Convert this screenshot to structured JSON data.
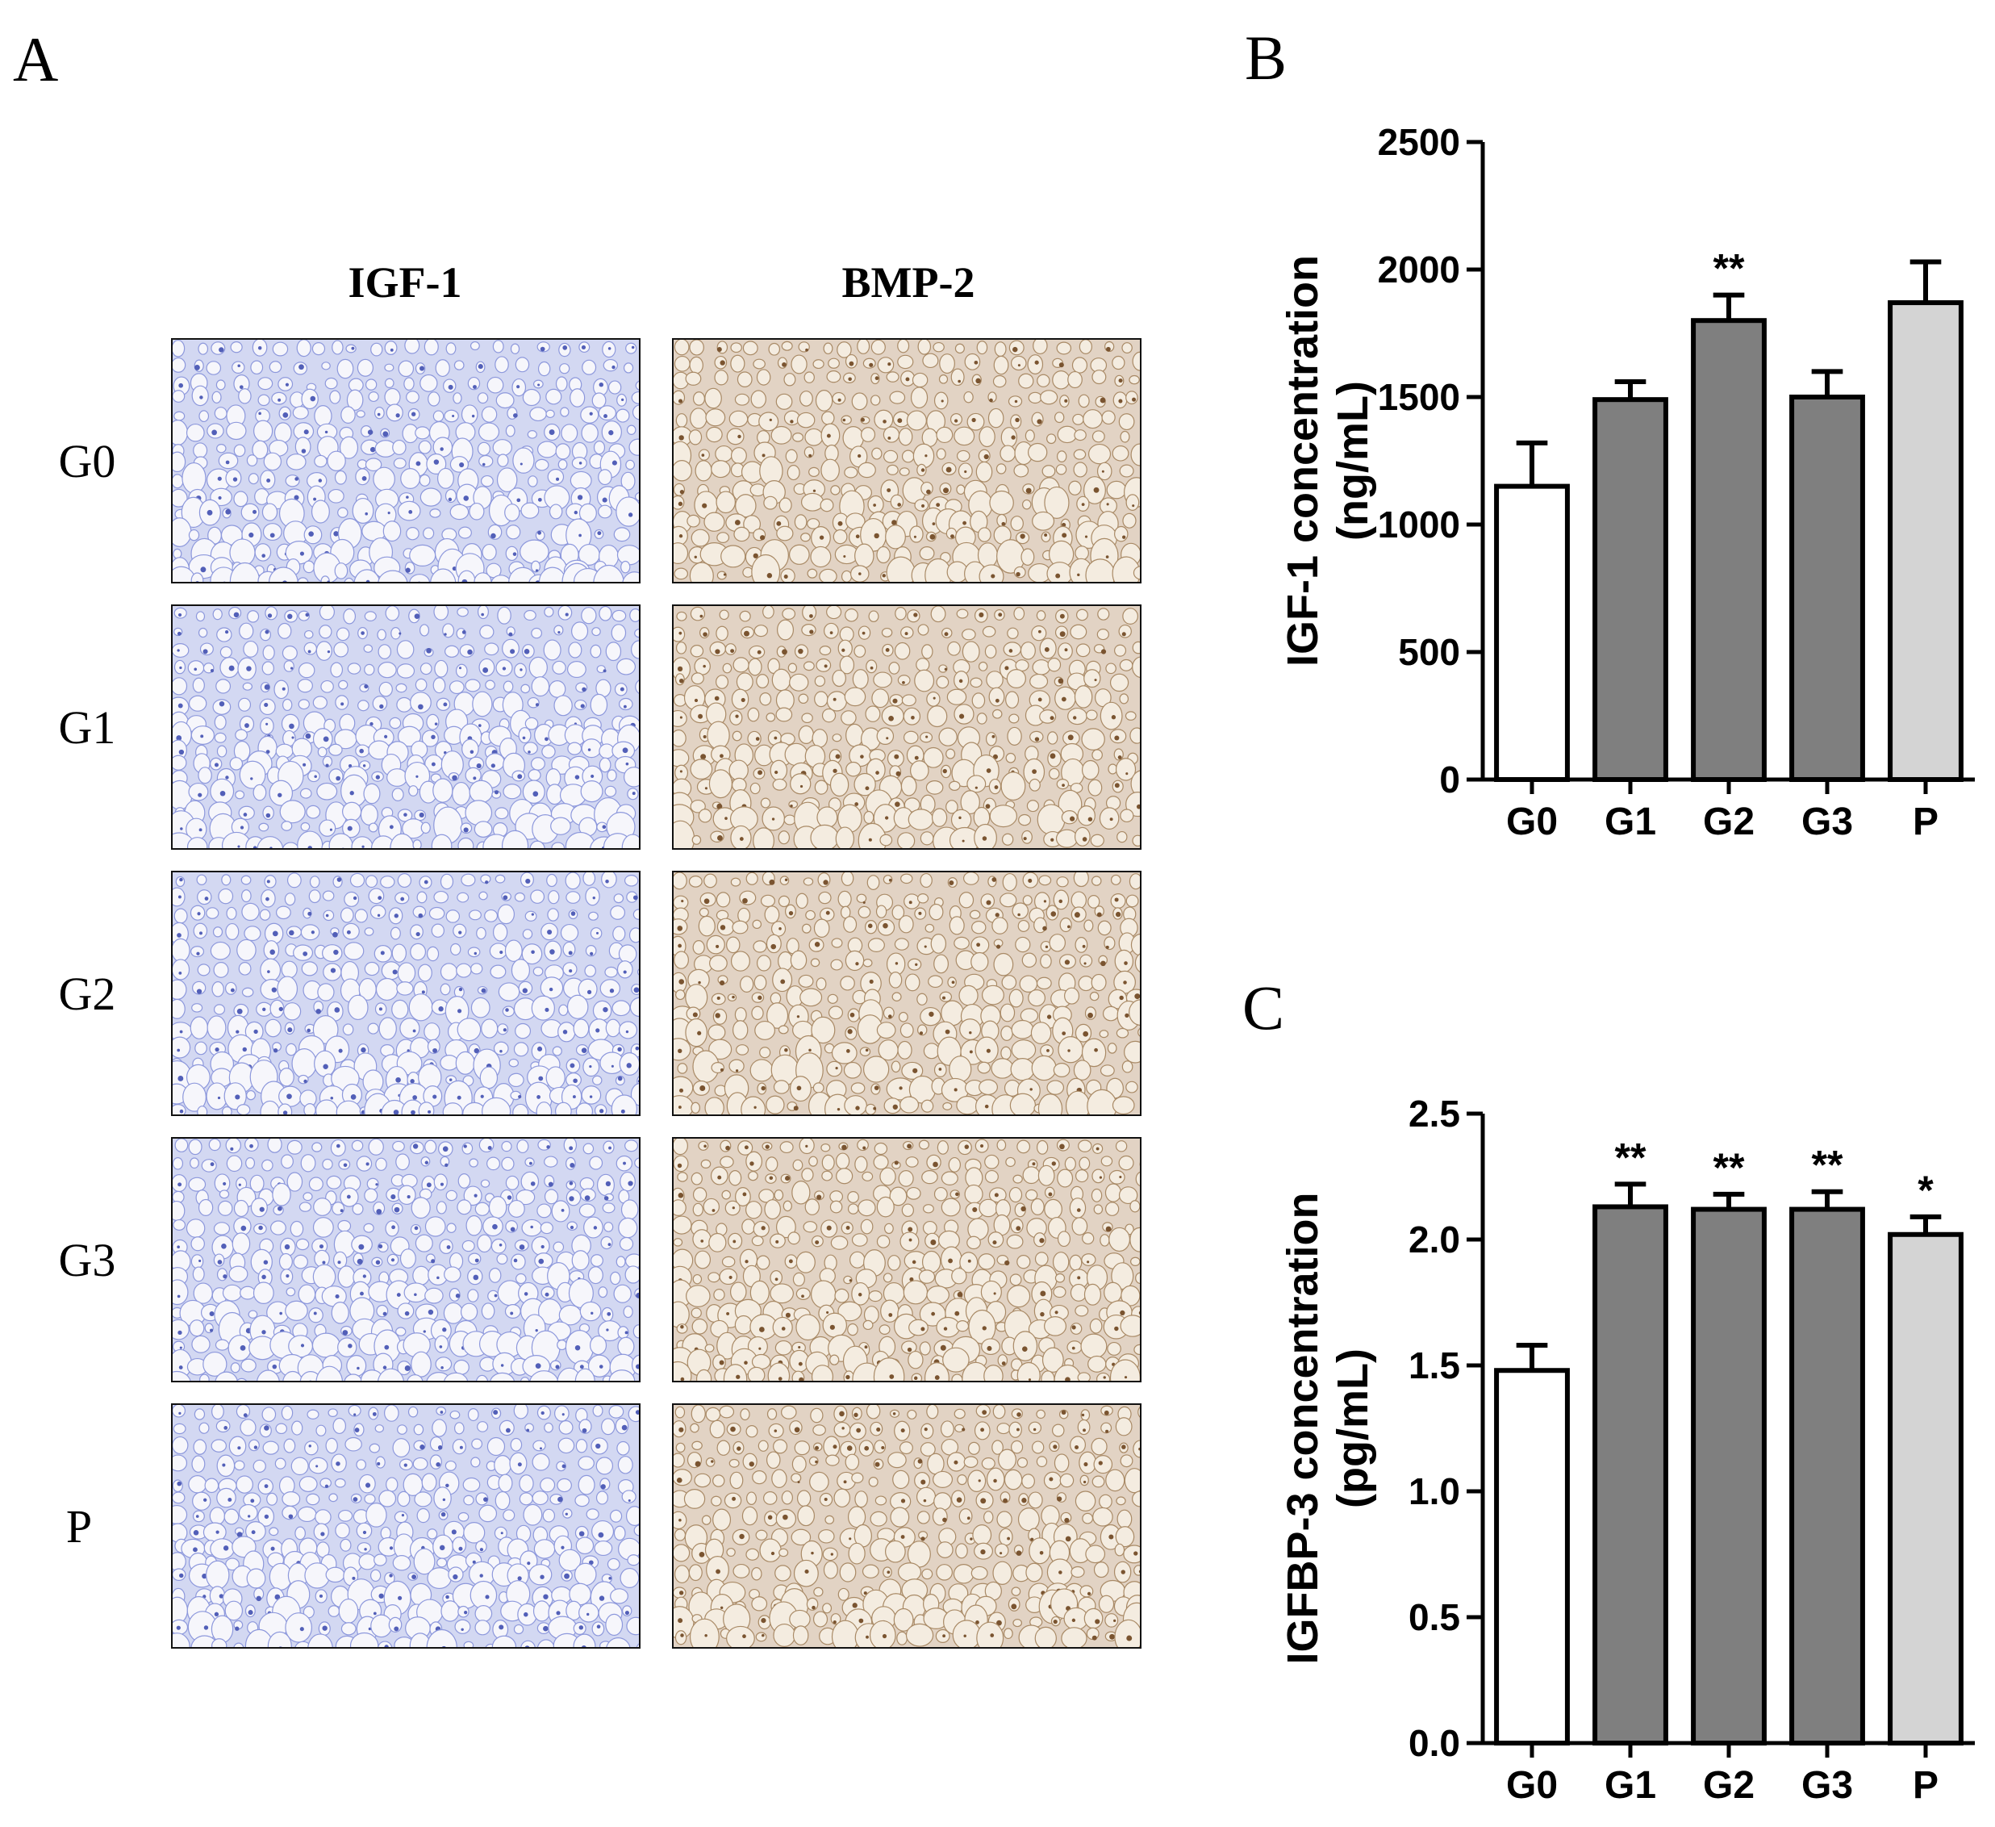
{
  "panels": {
    "A": {
      "letter": "A",
      "column_headers": [
        "IGF-1",
        "BMP-2"
      ],
      "row_labels": [
        "G0",
        "G1",
        "G2",
        "G3",
        "P"
      ],
      "stains": {
        "IGF-1": {
          "ground": "#d3d8f2",
          "cell_fill": "#f6f6fb",
          "cell_edge": "#8d98dc",
          "nucleus": "#525fb8"
        },
        "BMP-2": {
          "ground": "#e2d3c4",
          "cell_fill": "#f4ece0",
          "cell_edge": "#a98a66",
          "nucleus": "#7a5430"
        }
      }
    },
    "B": {
      "letter": "B"
    },
    "C": {
      "letter": "C"
    }
  },
  "chart_data": [
    {
      "type": "bar",
      "panel": "B",
      "categories": [
        "G0",
        "G1",
        "G2",
        "G3",
        "P"
      ],
      "values": [
        1150,
        1490,
        1800,
        1500,
        1870
      ],
      "errors": [
        170,
        70,
        100,
        100,
        160
      ],
      "significance": [
        "",
        "",
        "**",
        "",
        ""
      ],
      "bar_colors": [
        "#ffffff",
        "#7f7f7f",
        "#7f7f7f",
        "#7f7f7f",
        "#d4d4d4"
      ],
      "ylabel_line1": "IGF-1 concentration",
      "ylabel_line2": "(ng/mL)",
      "ylim": [
        0,
        2500
      ],
      "yticks": [
        0,
        500,
        1000,
        1500,
        2000,
        2500
      ],
      "ytick_labels": [
        "0",
        "500",
        "1000",
        "1500",
        "2000",
        "2500"
      ]
    },
    {
      "type": "bar",
      "panel": "C",
      "categories": [
        "G0",
        "G1",
        "G2",
        "G3",
        "P"
      ],
      "values": [
        1.48,
        2.13,
        2.12,
        2.12,
        2.02
      ],
      "errors": [
        0.1,
        0.09,
        0.06,
        0.07,
        0.07
      ],
      "significance": [
        "",
        "**",
        "**",
        "**",
        "*"
      ],
      "bar_colors": [
        "#ffffff",
        "#7f7f7f",
        "#7f7f7f",
        "#7f7f7f",
        "#d4d4d4"
      ],
      "ylabel_line1": "IGFBP-3 concentration",
      "ylabel_line2": "(pg/mL)",
      "ylim": [
        0,
        2.5
      ],
      "yticks": [
        0,
        0.5,
        1.0,
        1.5,
        2.0,
        2.5
      ],
      "ytick_labels": [
        "0.0",
        "0.5",
        "1.0",
        "1.5",
        "2.0",
        "2.5"
      ]
    }
  ]
}
